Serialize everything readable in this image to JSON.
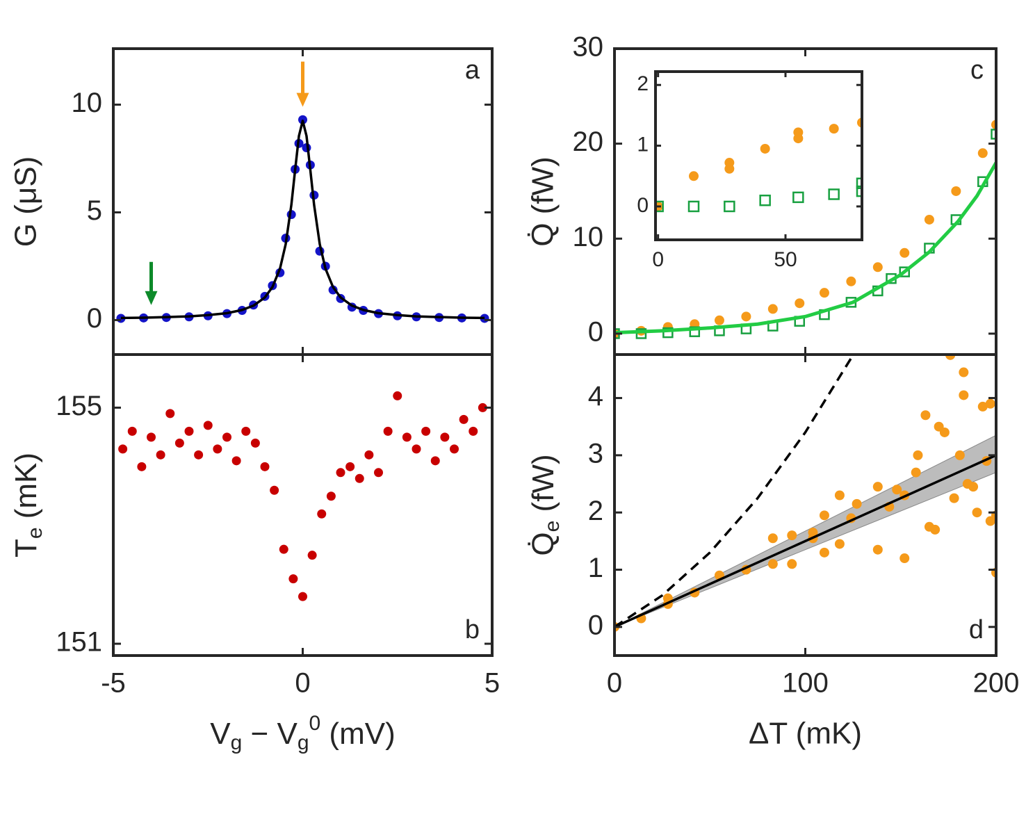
{
  "chart_data": [
    {
      "type": "scatter",
      "panel_label": "a",
      "label_corner": "top-right",
      "ylabel": "G (μS)",
      "xlim": [
        -5,
        5
      ],
      "ylim": [
        -1.6,
        12.6
      ],
      "xticks": [
        -5,
        0,
        5
      ],
      "yticks": [
        0,
        5,
        10
      ],
      "show_xtick_labels": false,
      "arrows": [
        {
          "x": 0,
          "y": [
            12.0,
            9.9
          ],
          "color": "#f59a1a"
        },
        {
          "x": -4,
          "y": [
            2.7,
            0.7
          ],
          "color": "#0d8a2a"
        }
      ],
      "series": [
        {
          "type": "scatter",
          "color": "#1414c8",
          "x": [
            -4.8,
            -4.2,
            -3.6,
            -3,
            -2.5,
            -2,
            -1.6,
            -1.3,
            -1,
            -0.8,
            -0.6,
            -0.45,
            -0.3,
            -0.2,
            -0.1,
            0,
            0.1,
            0.2,
            0.3,
            0.45,
            0.6,
            0.8,
            1,
            1.3,
            1.6,
            2,
            2.5,
            3,
            3.6,
            4.2,
            4.8
          ],
          "values": [
            0.08,
            0.1,
            0.12,
            0.15,
            0.2,
            0.3,
            0.45,
            0.7,
            1.1,
            1.6,
            2.2,
            3.8,
            4.9,
            7.0,
            8.2,
            9.3,
            8.0,
            7.2,
            5.8,
            3.2,
            2.5,
            1.4,
            1.0,
            0.6,
            0.45,
            0.3,
            0.2,
            0.15,
            0.12,
            0.1,
            0.08
          ]
        },
        {
          "type": "line",
          "color": "#000000",
          "x": [
            -4.8,
            -4.2,
            -3.6,
            -3,
            -2.5,
            -2,
            -1.6,
            -1.3,
            -1,
            -0.8,
            -0.6,
            -0.45,
            -0.3,
            -0.2,
            -0.1,
            0,
            0.1,
            0.2,
            0.3,
            0.45,
            0.6,
            0.8,
            1,
            1.3,
            1.6,
            2,
            2.5,
            3,
            3.6,
            4.2,
            4.8
          ],
          "values": [
            0.1,
            0.11,
            0.14,
            0.17,
            0.23,
            0.32,
            0.47,
            0.67,
            1.05,
            1.53,
            2.39,
            3.52,
            5.35,
            6.98,
            8.55,
            9.25,
            8.55,
            6.98,
            5.35,
            3.52,
            2.39,
            1.53,
            1.05,
            0.67,
            0.47,
            0.32,
            0.23,
            0.17,
            0.14,
            0.11,
            0.1
          ]
        }
      ]
    },
    {
      "type": "scatter",
      "panel_label": "b",
      "label_corner": "bottom-right",
      "ylabel": [
        {
          "text": "T"
        },
        {
          "text": "e",
          "shift": "sub"
        },
        {
          "text": " (mK)"
        }
      ],
      "xlabel": [
        {
          "text": "V"
        },
        {
          "text": "g",
          "shift": "sub"
        },
        {
          "text": " − V"
        },
        {
          "text": "g",
          "shift": "sub"
        },
        {
          "text": "0",
          "shift": "sup"
        },
        {
          "text": " (mV)"
        }
      ],
      "xlim": [
        -5,
        5
      ],
      "ylim": [
        150.8,
        155.9
      ],
      "xticks": [
        -5,
        0,
        5
      ],
      "yticks": [
        151,
        155
      ],
      "series": [
        {
          "type": "scatter",
          "color": "#c80000",
          "x": [
            -4.75,
            -4.5,
            -4.25,
            -4,
            -3.75,
            -3.5,
            -3.25,
            -3,
            -2.75,
            -2.5,
            -2.25,
            -2,
            -1.75,
            -1.5,
            -1.25,
            -1,
            -0.75,
            -0.5,
            -0.25,
            0,
            0.25,
            0.5,
            0.75,
            1,
            1.25,
            1.5,
            1.75,
            2,
            2.25,
            2.5,
            2.75,
            3,
            3.25,
            3.5,
            3.75,
            4,
            4.25,
            4.5,
            4.75
          ],
          "values": [
            154.3,
            154.6,
            154.0,
            154.5,
            154.2,
            154.9,
            154.4,
            154.6,
            154.2,
            154.7,
            154.3,
            154.5,
            154.1,
            154.6,
            154.4,
            154.0,
            153.6,
            152.6,
            152.1,
            151.8,
            152.5,
            153.2,
            153.5,
            153.9,
            154.0,
            153.8,
            154.2,
            153.9,
            154.6,
            155.2,
            154.5,
            154.3,
            154.6,
            154.1,
            154.5,
            154.3,
            154.8,
            154.6,
            155.0
          ]
        }
      ]
    },
    {
      "type": "scatter",
      "panel_label": "c",
      "label_corner": "top-right",
      "ylabel": "Q̇ (fW)",
      "xlim": [
        0,
        200
      ],
      "ylim": [
        -2.2,
        30
      ],
      "xticks": [
        0,
        100,
        200
      ],
      "yticks": [
        0,
        10,
        20,
        30
      ],
      "show_xtick_labels": false,
      "series": [
        {
          "type": "scatter",
          "color": "#f59a1a",
          "x": [
            0,
            14,
            28,
            42,
            55,
            69,
            83,
            97,
            110,
            124,
            138,
            152,
            165,
            179,
            193,
            200
          ],
          "values": [
            0,
            0.3,
            0.7,
            1.0,
            1.4,
            1.8,
            2.6,
            3.2,
            4.3,
            5.5,
            7.0,
            8.5,
            12,
            15,
            19,
            22
          ]
        },
        {
          "type": "square",
          "color": "#18a040",
          "x": [
            0,
            14,
            28,
            42,
            55,
            69,
            83,
            97,
            110,
            124,
            138,
            145,
            152,
            165,
            179,
            193,
            200
          ],
          "values": [
            0,
            0,
            0.1,
            0.2,
            0.3,
            0.5,
            0.8,
            1.3,
            2.0,
            3.3,
            4.5,
            5.8,
            6.5,
            9,
            12,
            16,
            21
          ]
        },
        {
          "type": "line",
          "color": "#22cc44",
          "x": [
            0,
            25,
            50,
            75,
            100,
            125,
            150,
            165,
            180,
            190,
            200
          ],
          "values": [
            0.1,
            0.3,
            0.6,
            1.0,
            1.8,
            3.3,
            6.2,
            8.6,
            11.8,
            14.5,
            18
          ]
        }
      ]
    },
    {
      "type": "scatter",
      "xlim": [
        -1,
        80
      ],
      "ylim": [
        -0.55,
        2.22
      ],
      "xticks": [
        0,
        50
      ],
      "yticks": [
        0,
        1,
        2
      ],
      "series": [
        {
          "type": "scatter",
          "color": "#f59a1a",
          "x": [
            0,
            14,
            28,
            28,
            42,
            55,
            55,
            69,
            80
          ],
          "values": [
            0,
            0.5,
            0.62,
            0.72,
            0.95,
            1.12,
            1.22,
            1.28,
            1.38
          ]
        },
        {
          "type": "square",
          "color": "#18a040",
          "x": [
            0,
            14,
            28,
            42,
            55,
            69,
            80,
            80
          ],
          "values": [
            0,
            0,
            0,
            0.1,
            0.15,
            0.2,
            0.25,
            0.38
          ]
        }
      ]
    },
    {
      "type": "scatter",
      "panel_label": "d",
      "label_corner": "bottom-right",
      "ylabel": [
        {
          "text": "Q̇"
        },
        {
          "text": "e",
          "shift": "sub"
        },
        {
          "text": " (fW)"
        }
      ],
      "xlabel": "ΔT (mK)",
      "xlim": [
        0,
        200
      ],
      "ylim": [
        -0.5,
        4.76
      ],
      "xticks": [
        0,
        100,
        200
      ],
      "yticks": [
        0,
        1,
        2,
        3,
        4
      ],
      "series": [
        {
          "type": "band",
          "color": "#a0a0a0",
          "x": [
            0,
            200
          ],
          "upper": [
            0,
            3.35
          ],
          "lower": [
            0,
            2.7
          ]
        },
        {
          "type": "scatter",
          "color": "#f59a1a",
          "x": [
            0,
            14,
            28,
            28,
            42,
            55,
            69,
            83,
            83,
            93,
            93,
            104,
            104,
            110,
            110,
            118,
            118,
            124,
            127,
            138,
            138,
            144,
            148,
            152,
            152,
            158,
            159,
            163,
            165,
            168,
            170,
            173,
            176,
            178,
            181,
            183,
            183,
            185,
            188,
            190,
            193,
            195,
            197,
            197,
            200,
            200
          ],
          "values": [
            0,
            0.15,
            0.4,
            0.5,
            0.6,
            0.9,
            1.0,
            1.1,
            1.55,
            1.1,
            1.6,
            1.65,
            1.55,
            1.3,
            1.95,
            1.45,
            2.3,
            1.9,
            2.15,
            2.45,
            1.35,
            2.1,
            2.4,
            1.2,
            2.3,
            2.7,
            3.0,
            3.7,
            1.75,
            1.7,
            3.5,
            3.4,
            4.75,
            2.25,
            3.0,
            4.45,
            4.05,
            2.5,
            2.45,
            2.0,
            3.85,
            2.9,
            3.9,
            1.85,
            1.95,
            0.95
          ]
        },
        {
          "type": "line",
          "color": "#000000",
          "x": [
            0,
            200
          ],
          "values": [
            0,
            3.0
          ]
        },
        {
          "type": "line",
          "color": "#000000",
          "dashed": true,
          "x": [
            0,
            25,
            50,
            75,
            100,
            125
          ],
          "values": [
            0,
            0.55,
            1.3,
            2.25,
            3.4,
            4.75
          ]
        }
      ]
    }
  ]
}
